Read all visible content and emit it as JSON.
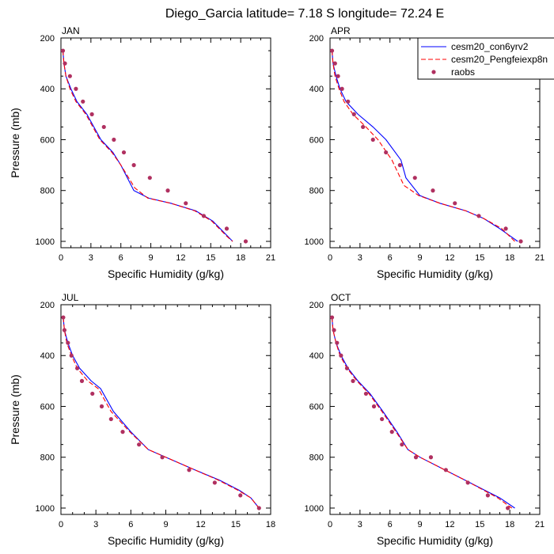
{
  "figure": {
    "title": "Diego_Garcia  latitude= 7.18 S longitude= 72.24 E"
  },
  "legend": {
    "placement": "top-right",
    "entries": [
      {
        "label": "cesm20_con6yrv2",
        "color": "#0000ff",
        "style": "solid"
      },
      {
        "label": "cesm20_Pengfeiexp8n",
        "color": "#ff0000",
        "style": "dashed"
      },
      {
        "label": "raobs",
        "color": "#b03060",
        "style": "marker"
      }
    ]
  },
  "chart_data": [
    {
      "type": "line",
      "title": "JAN",
      "xlabel": "Specific Humidity (g/kg)",
      "ylabel": "Pressure (mb)",
      "xlim": [
        0,
        21
      ],
      "ylim": [
        200,
        1025
      ],
      "y_reversed": true,
      "xticks": [
        "0",
        "3",
        "6",
        "9",
        "12",
        "15",
        "18",
        "21"
      ],
      "yticks": [
        "200",
        "400",
        "600",
        "800",
        "1000"
      ],
      "series": [
        {
          "name": "cesm20_con6yrv2",
          "color": "#0000ff",
          "style": "solid",
          "x": [
            0.2,
            0.3,
            0.5,
            1.0,
            1.6,
            2.6,
            4.0,
            5.2,
            6.0,
            7.3,
            8.8,
            11.0,
            13.5,
            15.2,
            16.7,
            17.2
          ],
          "y": [
            250,
            300,
            350,
            400,
            450,
            500,
            600,
            650,
            700,
            800,
            830,
            850,
            880,
            920,
            980,
            1000
          ]
        },
        {
          "name": "cesm20_Pengfeiexp8n",
          "color": "#ff0000",
          "style": "dashed",
          "x": [
            0.2,
            0.3,
            0.5,
            0.9,
            1.5,
            2.5,
            3.9,
            5.1,
            6.0,
            7.4,
            8.7,
            11.0,
            13.4,
            15.1,
            16.6,
            17.2
          ],
          "y": [
            250,
            300,
            350,
            400,
            450,
            500,
            600,
            650,
            700,
            790,
            830,
            850,
            880,
            920,
            980,
            1000
          ]
        },
        {
          "name": "raobs",
          "color": "#b03060",
          "style": "marker",
          "x": [
            0.2,
            0.4,
            0.9,
            1.5,
            2.2,
            3.1,
            4.3,
            5.3,
            6.3,
            7.3,
            8.9,
            10.7,
            12.5,
            14.3,
            16.6,
            18.5
          ],
          "y": [
            250,
            300,
            350,
            400,
            450,
            500,
            550,
            600,
            650,
            700,
            750,
            800,
            850,
            900,
            950,
            1000
          ]
        }
      ]
    },
    {
      "type": "line",
      "title": "APR",
      "xlabel": "Specific Humidity (g/kg)",
      "ylabel": "",
      "xlim": [
        0,
        21
      ],
      "ylim": [
        200,
        1025
      ],
      "y_reversed": true,
      "xticks": [
        "0",
        "3",
        "6",
        "9",
        "12",
        "15",
        "18",
        "21"
      ],
      "yticks": [
        "200",
        "400",
        "600",
        "800",
        "1000"
      ],
      "series": [
        {
          "name": "cesm20_con6yrv2",
          "color": "#0000ff",
          "style": "solid",
          "x": [
            0.2,
            0.3,
            0.6,
            1.0,
            1.6,
            2.8,
            4.3,
            5.6,
            7.1,
            7.6,
            9.0,
            11.0,
            13.6,
            15.4,
            17.0,
            18.8
          ],
          "y": [
            250,
            300,
            350,
            400,
            450,
            500,
            550,
            600,
            680,
            750,
            820,
            850,
            880,
            910,
            950,
            1000
          ]
        },
        {
          "name": "cesm20_Pengfeiexp8n",
          "color": "#ff0000",
          "style": "dashed",
          "x": [
            0.2,
            0.3,
            0.5,
            0.9,
            1.4,
            2.3,
            3.6,
            4.8,
            6.2,
            7.4,
            8.9,
            11.0,
            13.6,
            15.4,
            17.2,
            18.5
          ],
          "y": [
            250,
            300,
            350,
            400,
            450,
            500,
            550,
            600,
            680,
            780,
            820,
            850,
            880,
            910,
            950,
            1000
          ]
        },
        {
          "name": "raobs",
          "color": "#b03060",
          "style": "marker",
          "x": [
            0.2,
            0.5,
            0.8,
            1.2,
            1.8,
            2.4,
            3.3,
            4.3,
            5.6,
            7.0,
            8.5,
            10.3,
            12.5,
            14.9,
            17.6,
            19.1
          ],
          "y": [
            250,
            300,
            350,
            400,
            450,
            500,
            550,
            600,
            650,
            700,
            750,
            800,
            850,
            900,
            950,
            1000
          ]
        }
      ]
    },
    {
      "type": "line",
      "title": "JUL",
      "xlabel": "Specific Humidity (g/kg)",
      "ylabel": "Pressure (mb)",
      "xlim": [
        0,
        18
      ],
      "ylim": [
        200,
        1025
      ],
      "y_reversed": true,
      "xticks": [
        "0",
        "3",
        "6",
        "9",
        "12",
        "15",
        "18"
      ],
      "yticks": [
        "200",
        "400",
        "600",
        "800",
        "1000"
      ],
      "series": [
        {
          "name": "cesm20_con6yrv2",
          "color": "#0000ff",
          "style": "solid",
          "x": [
            0.2,
            0.3,
            0.6,
            1.0,
            1.6,
            2.6,
            3.4,
            4.5,
            6.0,
            7.5,
            9.0,
            11.5,
            13.6,
            15.3,
            16.3,
            17.0
          ],
          "y": [
            250,
            300,
            350,
            400,
            450,
            500,
            530,
            620,
            700,
            770,
            800,
            850,
            890,
            930,
            960,
            1000
          ]
        },
        {
          "name": "cesm20_Pengfeiexp8n",
          "color": "#ff0000",
          "style": "dashed",
          "x": [
            0.2,
            0.3,
            0.5,
            0.9,
            1.4,
            2.3,
            3.2,
            4.3,
            5.9,
            7.5,
            9.0,
            11.5,
            13.5,
            15.2,
            16.3,
            17.0
          ],
          "y": [
            250,
            300,
            350,
            400,
            450,
            500,
            530,
            620,
            700,
            770,
            800,
            850,
            890,
            930,
            960,
            1000
          ]
        },
        {
          "name": "raobs",
          "color": "#b03060",
          "style": "marker",
          "x": [
            0.2,
            0.3,
            0.6,
            0.9,
            1.4,
            1.8,
            2.7,
            3.5,
            4.3,
            5.3,
            6.7,
            8.7,
            11.0,
            13.2,
            15.4,
            17.0
          ],
          "y": [
            250,
            300,
            350,
            400,
            450,
            500,
            550,
            600,
            650,
            700,
            750,
            800,
            850,
            900,
            950,
            1000
          ]
        }
      ]
    },
    {
      "type": "line",
      "title": "OCT",
      "xlabel": "Specific Humidity (g/kg)",
      "ylabel": "",
      "xlim": [
        0,
        21
      ],
      "ylim": [
        200,
        1025
      ],
      "y_reversed": true,
      "xticks": [
        "0",
        "3",
        "6",
        "9",
        "12",
        "15",
        "18",
        "21"
      ],
      "yticks": [
        "200",
        "400",
        "600",
        "800",
        "1000"
      ],
      "series": [
        {
          "name": "cesm20_con6yrv2",
          "color": "#0000ff",
          "style": "solid",
          "x": [
            0.2,
            0.3,
            0.6,
            1.1,
            1.8,
            2.8,
            4.0,
            5.3,
            6.7,
            7.8,
            9.0,
            11.5,
            13.5,
            15.5,
            17.0,
            18.5
          ],
          "y": [
            250,
            300,
            350,
            400,
            450,
            500,
            550,
            620,
            700,
            770,
            800,
            850,
            890,
            930,
            960,
            1000
          ]
        },
        {
          "name": "cesm20_Pengfeiexp8n",
          "color": "#ff0000",
          "style": "dashed",
          "x": [
            0.2,
            0.3,
            0.6,
            1.0,
            1.7,
            2.7,
            3.9,
            5.2,
            6.6,
            7.8,
            9.0,
            11.5,
            13.5,
            15.4,
            16.8,
            18.2
          ],
          "y": [
            250,
            300,
            350,
            400,
            450,
            500,
            550,
            620,
            700,
            770,
            800,
            850,
            890,
            930,
            960,
            1000
          ]
        },
        {
          "name": "raobs",
          "color": "#b03060",
          "style": "marker",
          "x": [
            0.2,
            0.4,
            0.7,
            1.1,
            1.7,
            2.3,
            3.6,
            4.4,
            5.2,
            6.2,
            7.2,
            8.6,
            10.1,
            11.6,
            13.8,
            15.8,
            17.8
          ],
          "y": [
            250,
            300,
            350,
            400,
            450,
            500,
            550,
            600,
            650,
            700,
            750,
            800,
            800,
            850,
            900,
            950,
            1000
          ]
        }
      ]
    }
  ]
}
